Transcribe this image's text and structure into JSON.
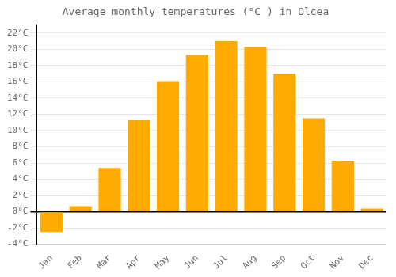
{
  "chart_data": {
    "type": "bar",
    "title": "Average monthly temperatures (°C ) in Olcea",
    "categories": [
      "Jan",
      "Feb",
      "Mar",
      "Apr",
      "May",
      "Jun",
      "Jul",
      "Aug",
      "Sep",
      "Oct",
      "Nov",
      "Dec"
    ],
    "values": [
      -2.5,
      0.7,
      5.4,
      11.3,
      16.1,
      19.3,
      21.0,
      20.3,
      17.0,
      11.5,
      6.3,
      0.4
    ],
    "color": "#FFAA00",
    "ylim": [
      -4,
      23
    ],
    "yticks": [
      {
        "value": -4,
        "label": "-4°C"
      },
      {
        "value": -2,
        "label": "-2°C"
      },
      {
        "value": 0,
        "label": "0°C"
      },
      {
        "value": 2,
        "label": "2°C"
      },
      {
        "value": 4,
        "label": "4°C"
      },
      {
        "value": 6,
        "label": "6°C"
      },
      {
        "value": 8,
        "label": "8°C"
      },
      {
        "value": 10,
        "label": "10°C"
      },
      {
        "value": 12,
        "label": "12°C"
      },
      {
        "value": 14,
        "label": "14°C"
      },
      {
        "value": 16,
        "label": "16°C"
      },
      {
        "value": 18,
        "label": "18°C"
      },
      {
        "value": 20,
        "label": "20°C"
      },
      {
        "value": 22,
        "label": "22°C"
      }
    ],
    "grid": true
  }
}
